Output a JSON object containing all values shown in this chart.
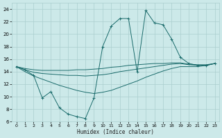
{
  "xlabel": "Humidex (Indice chaleur)",
  "xlim": [
    -0.5,
    23.5
  ],
  "ylim": [
    6,
    25
  ],
  "yticks": [
    6,
    8,
    10,
    12,
    14,
    16,
    18,
    20,
    22,
    24
  ],
  "xticks": [
    0,
    1,
    2,
    3,
    4,
    5,
    6,
    7,
    8,
    9,
    10,
    11,
    12,
    13,
    14,
    15,
    16,
    17,
    18,
    19,
    20,
    21,
    22,
    23
  ],
  "bg_color": "#cce9e9",
  "grid_color": "#aacece",
  "line_color": "#1a6b6b",
  "lines": [
    {
      "x": [
        0,
        1,
        2,
        3,
        4,
        5,
        6,
        7,
        8,
        9,
        10,
        11,
        12,
        13,
        14,
        15,
        16,
        17,
        18,
        19,
        20,
        21,
        22,
        23
      ],
      "y": [
        14.8,
        14.3,
        13.4,
        9.8,
        10.8,
        8.2,
        7.2,
        6.8,
        6.5,
        9.8,
        18.0,
        21.3,
        22.5,
        22.5,
        14.0,
        23.8,
        21.8,
        21.5,
        19.2,
        16.3,
        15.3,
        15.0,
        15.0,
        15.3
      ],
      "marker": "+"
    },
    {
      "x": [
        0,
        1,
        2,
        3,
        4,
        5,
        6,
        7,
        8,
        9,
        10,
        11,
        12,
        13,
        14,
        15,
        16,
        17,
        18,
        19,
        20,
        21,
        22,
        23
      ],
      "y": [
        14.8,
        14.5,
        14.3,
        14.2,
        14.2,
        14.2,
        14.2,
        14.3,
        14.3,
        14.4,
        14.5,
        14.7,
        14.8,
        15.0,
        15.1,
        15.2,
        15.3,
        15.3,
        15.4,
        15.4,
        15.2,
        15.1,
        15.1,
        15.3
      ],
      "marker": null
    },
    {
      "x": [
        0,
        1,
        2,
        3,
        4,
        5,
        6,
        7,
        8,
        9,
        10,
        11,
        12,
        13,
        14,
        15,
        16,
        17,
        18,
        19,
        20,
        21,
        22,
        23
      ],
      "y": [
        14.8,
        14.3,
        13.9,
        13.7,
        13.6,
        13.5,
        13.4,
        13.4,
        13.3,
        13.4,
        13.5,
        13.7,
        14.0,
        14.2,
        14.4,
        14.6,
        14.8,
        15.0,
        15.2,
        15.3,
        15.1,
        15.0,
        15.0,
        15.3
      ],
      "marker": null
    },
    {
      "x": [
        0,
        1,
        2,
        3,
        4,
        5,
        6,
        7,
        8,
        9,
        10,
        11,
        12,
        13,
        14,
        15,
        16,
        17,
        18,
        19,
        20,
        21,
        22,
        23
      ],
      "y": [
        14.8,
        14.0,
        13.3,
        12.8,
        12.3,
        11.8,
        11.4,
        11.0,
        10.7,
        10.5,
        10.7,
        11.0,
        11.5,
        12.0,
        12.5,
        13.1,
        13.6,
        14.1,
        14.5,
        14.8,
        14.8,
        14.8,
        15.0,
        15.3
      ],
      "marker": null
    }
  ]
}
